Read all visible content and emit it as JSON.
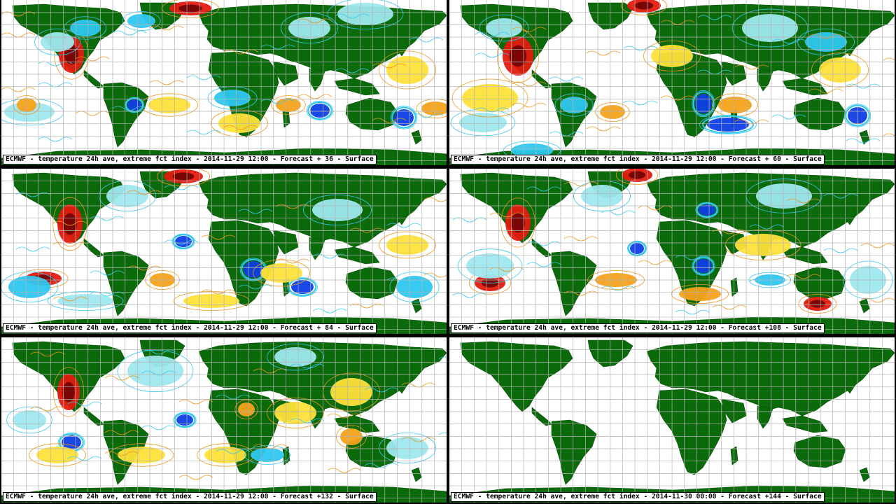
{
  "colors": {
    "land": "#0b6b0b",
    "ocean": "#ffffff",
    "grid": "#b4b4b4",
    "cold_light": "#9ee8ee",
    "cold_mid": "#2ec7f0",
    "cold_strong": "#0e3fe6",
    "cold_contour": "#35c9f2",
    "warm_light": "#ffe23a",
    "warm_mid": "#f5a21a",
    "warm_strong": "#e31b0e",
    "warm_extreme": "#7a0606",
    "warm_contour": "#f09418"
  },
  "panels": [
    {
      "caption": "ECMWF - temperature 24h ave, extreme fct index - 2014-11-29 12:00 - Forecast + 36 - Surface",
      "forecast_hour": 36
    },
    {
      "caption": "ECMWF - temperature 24h ave, extreme fct index - 2014-11-29 12:00 - Forecast + 60 - Surface",
      "forecast_hour": 60
    },
    {
      "caption": "ECMWF - temperature 24h ave, extreme fct index - 2014-11-29 12:00 - Forecast + 84 - Surface",
      "forecast_hour": 84
    },
    {
      "caption": "ECMWF - temperature 24h ave, extreme fct index - 2014-11-29 12:00 - Forecast +108 - Surface",
      "forecast_hour": 108
    },
    {
      "caption": "ECMWF - temperature 24h ave, extreme fct index - 2014-11-29 12:00 - Forecast +132 - Surface",
      "forecast_hour": 132
    },
    {
      "caption": "ECMWF - temperature 24h ave, extreme fct index - 2014-11-30 00:00 - Forecast +144 - Surface",
      "forecast_hour": 144
    }
  ]
}
